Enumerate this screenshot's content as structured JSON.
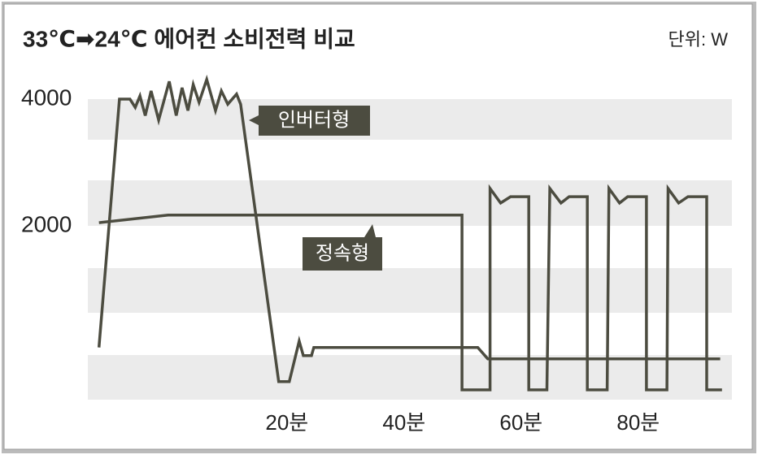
{
  "chart_data": {
    "type": "line",
    "title": "33℃➡24℃ 에어컨 소비전력 비교",
    "unit": "단위: W",
    "xlim": [
      -14,
      96
    ],
    "ylim": [
      -745,
      4385
    ],
    "xticks": [
      {
        "value": 20,
        "label": "20분"
      },
      {
        "value": 40,
        "label": "40분"
      },
      {
        "value": 60,
        "label": "60분"
      },
      {
        "value": 80,
        "label": "80분"
      }
    ],
    "yticks": [
      2000,
      4000
    ],
    "series": [
      {
        "name": "인버터형",
        "color": "#4c4c40",
        "x": [
          -12.1,
          -8.6,
          -6.8,
          -5.9,
          -5.1,
          -4.2,
          -3.2,
          -1.9,
          -0.1,
          1.1,
          2.1,
          3.1,
          4.0,
          5.0,
          6.3,
          7.8,
          8.8,
          9.9,
          11.4,
          12.1,
          18.6,
          20.4,
          22.1,
          22.8,
          24.2,
          24.6,
          52.6,
          54.3,
          94.0
        ],
        "values": [
          80,
          4000,
          4000,
          3870,
          4050,
          3740,
          4130,
          3670,
          4280,
          3740,
          4180,
          3820,
          4230,
          3950,
          4310,
          3820,
          4130,
          3920,
          4080,
          3920,
          -460,
          -460,
          180,
          -50,
          -50,
          80,
          80,
          -100,
          -100
        ]
      },
      {
        "name": "정속형",
        "color": "#4c4c40",
        "x": [
          -12.1,
          -0.3,
          49.9,
          49.9,
          54.7,
          54.7,
          56.5,
          58.2,
          61.3,
          61.3,
          64.4,
          64.9,
          66.8,
          68.2,
          71.3,
          71.3,
          74.7,
          75.0,
          76.8,
          78.2,
          81.4,
          81.4,
          84.9,
          85.1,
          86.9,
          88.5,
          91.7,
          91.7,
          94.3
        ],
        "values": [
          2050,
          2170,
          2170,
          -590,
          -590,
          2590,
          2360,
          2460,
          2460,
          -590,
          -590,
          2590,
          2360,
          2460,
          2460,
          -590,
          -590,
          2590,
          2360,
          2460,
          2460,
          -590,
          -590,
          2590,
          2360,
          2460,
          2460,
          -590,
          -590
        ]
      }
    ]
  }
}
